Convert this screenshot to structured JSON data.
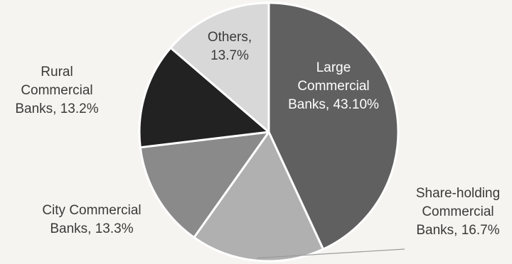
{
  "chart_data": {
    "type": "pie",
    "title": "",
    "start": "12 o'clock",
    "direction": "clockwise",
    "slices": [
      {
        "name": "Large Commercial Banks",
        "value": 43.1,
        "color": "#606060",
        "label_lines": [
          "Large",
          "Commercial",
          "Banks, 43.10%"
        ],
        "label_color": "#ffffff"
      },
      {
        "name": "Share-holding Commercial Banks",
        "value": 16.7,
        "color": "#b0b0b0",
        "label_lines": [
          "Share-holding",
          "Commercial",
          "Banks, 16.7%"
        ],
        "label_color": "#3a3a3a"
      },
      {
        "name": "City Commercial Banks",
        "value": 13.3,
        "color": "#8a8a8a",
        "label_lines": [
          "City Commercial",
          "Banks, 13.3%"
        ],
        "label_color": "#3a3a3a"
      },
      {
        "name": "Rural Commercial Banks",
        "value": 13.2,
        "color": "#222222",
        "label_lines": [
          "Rural",
          "Commercial",
          "Banks, 13.2%"
        ],
        "label_color": "#3a3a3a"
      },
      {
        "name": "Others",
        "value": 13.7,
        "color": "#d8d8d8",
        "label_lines": [
          "Others,",
          "13.7%"
        ],
        "label_color": "#3a3a3a"
      }
    ]
  }
}
